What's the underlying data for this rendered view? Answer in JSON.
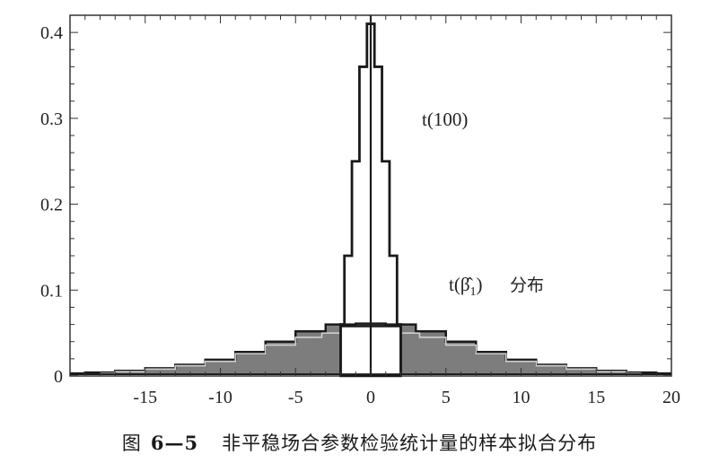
{
  "chart_data": {
    "type": "line",
    "title": "",
    "xlabel": "",
    "ylabel": "",
    "xlim": [
      -20,
      20
    ],
    "ylim": [
      0,
      0.42
    ],
    "x_ticks": [
      -15,
      -10,
      -5,
      0,
      5,
      10,
      15,
      20
    ],
    "y_ticks": [
      0,
      0.1,
      0.2,
      0.3,
      0.4
    ],
    "y_tick_labels": [
      "0",
      "0.1",
      "0.2",
      "0.3",
      "0.4"
    ],
    "grid": false,
    "annotations": {
      "t100_label": "t(100)",
      "tbeta_prefix": "t(",
      "tbeta_symbol": "β̂",
      "tbeta_sub": "1",
      "tbeta_suffix": ")",
      "tbeta_cjk": "分布"
    },
    "series": [
      {
        "id": "t100",
        "style": "step-line",
        "x": [
          -2.0,
          -1.5,
          -1.0,
          -0.5,
          0.0,
          0.5,
          1.0,
          1.5,
          2.0
        ],
        "y": [
          0.06,
          0.14,
          0.25,
          0.36,
          0.41,
          0.36,
          0.25,
          0.14,
          0.06
        ]
      },
      {
        "id": "tbeta-outer",
        "style": "step-filled",
        "x": [
          -20,
          -18,
          -16,
          -14,
          -12,
          -10,
          -8,
          -6,
          -4,
          -2,
          0,
          2,
          4,
          6,
          8,
          10,
          12,
          14,
          16,
          18,
          20
        ],
        "y": [
          0.003,
          0.004,
          0.006,
          0.009,
          0.013,
          0.019,
          0.028,
          0.04,
          0.052,
          0.06,
          0.061,
          0.06,
          0.052,
          0.04,
          0.028,
          0.019,
          0.013,
          0.009,
          0.006,
          0.004,
          0.003
        ]
      },
      {
        "id": "tbeta-inner",
        "style": "step-line",
        "x": [
          -18,
          -16,
          -14,
          -12,
          -10,
          -8,
          -6,
          -4,
          -2.5,
          2.5,
          4,
          6,
          8,
          10,
          12,
          14,
          16,
          18
        ],
        "y": [
          0.003,
          0.005,
          0.008,
          0.012,
          0.017,
          0.026,
          0.036,
          0.045,
          0.05,
          0.05,
          0.045,
          0.036,
          0.026,
          0.017,
          0.012,
          0.008,
          0.005,
          0.003
        ]
      },
      {
        "id": "tbeta-band",
        "style": "rect-outline",
        "x": [
          -2.0,
          2.0
        ],
        "y": [
          0.058,
          0.058
        ]
      }
    ]
  },
  "caption": {
    "prefix": "图",
    "number": "6—5",
    "text": "非平稳场合参数检验统计量的样本拟合分布"
  }
}
